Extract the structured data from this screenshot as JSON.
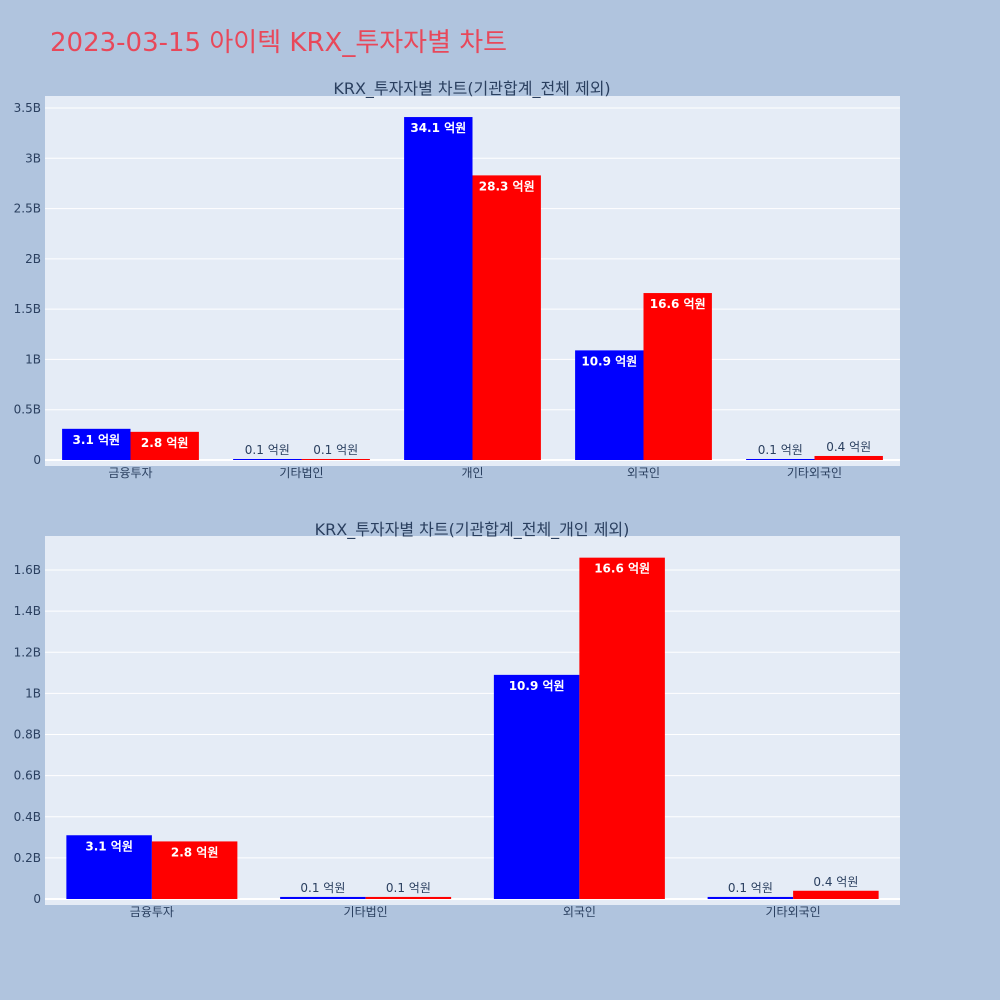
{
  "title": "2023-03-15 아이텍 KRX_투자자별 차트",
  "colors": {
    "page_bg": "#b0c4de",
    "plot_bg": "#e5ecf6",
    "series_a": "#0000ff",
    "series_b": "#ff0000",
    "title": "#e8485a"
  },
  "chart_data": [
    {
      "type": "bar",
      "title": "KRX_투자자별 차트(기관합계_전체 제외)",
      "categories": [
        "금융투자",
        "기타법인",
        "개인",
        "외국인",
        "기타외국인"
      ],
      "series": [
        {
          "color": "#0000ff",
          "values": [
            310000000,
            10000000,
            3410000000,
            1090000000,
            10000000
          ],
          "labels": [
            "3.1 억원",
            "0.1 억원",
            "34.1 억원",
            "10.9 억원",
            "0.1 억원"
          ]
        },
        {
          "color": "#ff0000",
          "values": [
            280000000,
            10000000,
            2830000000,
            1660000000,
            40000000
          ],
          "labels": [
            "2.8 억원",
            "0.1 억원",
            "28.3 억원",
            "16.6 억원",
            "0.4 억원"
          ]
        }
      ],
      "ylim": [
        0,
        3600000000
      ],
      "yticks": [
        0,
        500000000,
        1000000000,
        1500000000,
        2000000000,
        2500000000,
        3000000000,
        3500000000
      ],
      "ytick_labels": [
        "0",
        "0.5B",
        "1B",
        "1.5B",
        "2B",
        "2.5B",
        "3B",
        "3.5B"
      ],
      "grid": true,
      "xlabel": "",
      "ylabel": ""
    },
    {
      "type": "bar",
      "title": "KRX_투자자별 차트(기관합계_전체_개인 제외)",
      "categories": [
        "금융투자",
        "기타법인",
        "외국인",
        "기타외국인"
      ],
      "series": [
        {
          "color": "#0000ff",
          "values": [
            310000000,
            10000000,
            1090000000,
            10000000
          ],
          "labels": [
            "3.1 억원",
            "0.1 억원",
            "10.9 억원",
            "0.1 억원"
          ]
        },
        {
          "color": "#ff0000",
          "values": [
            280000000,
            10000000,
            1660000000,
            40000000
          ],
          "labels": [
            "2.8 억원",
            "0.1 억원",
            "16.6 억원",
            "0.4 억원"
          ]
        }
      ],
      "ylim": [
        0,
        1750000000
      ],
      "yticks": [
        0,
        200000000,
        400000000,
        600000000,
        800000000,
        1000000000,
        1200000000,
        1400000000,
        1600000000
      ],
      "ytick_labels": [
        "0",
        "0.2B",
        "0.4B",
        "0.6B",
        "0.8B",
        "1B",
        "1.2B",
        "1.4B",
        "1.6B"
      ],
      "grid": true,
      "xlabel": "",
      "ylabel": ""
    }
  ]
}
